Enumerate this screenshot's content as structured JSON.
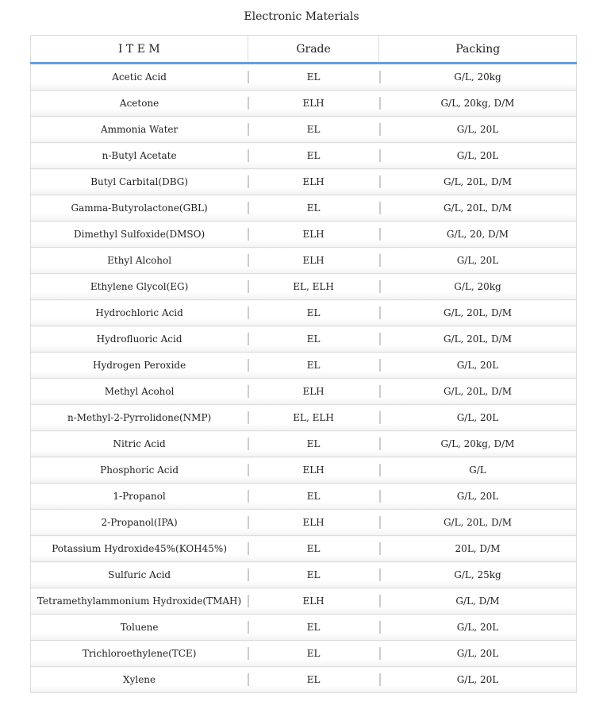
{
  "title": "Electronic Materials",
  "headers": [
    "I T E M",
    "Grade",
    "Packing"
  ],
  "accent_color": "#5fa0ea",
  "rows": [
    [
      "Acetic Acid",
      "EL",
      "G/L, 20kg"
    ],
    [
      "Acetone",
      "ELH",
      "G/L, 20kg, D/M"
    ],
    [
      "Ammonia Water",
      "EL",
      "G/L, 20L"
    ],
    [
      "n-Butyl Acetate",
      "EL",
      "G/L, 20L"
    ],
    [
      "Butyl Carbital(DBG)",
      "ELH",
      "G/L, 20L, D/M"
    ],
    [
      "Gamma-Butyrolactone(GBL)",
      "EL",
      "G/L, 20L, D/M"
    ],
    [
      "Dimethyl Sulfoxide(DMSO)",
      "ELH",
      "G/L, 20, D/M"
    ],
    [
      "Ethyl Alcohol",
      "ELH",
      "G/L, 20L"
    ],
    [
      "Ethylene Glycol(EG)",
      "EL, ELH",
      "G/L, 20kg"
    ],
    [
      "Hydrochloric Acid",
      "EL",
      "G/L, 20L, D/M"
    ],
    [
      "Hydrofluoric Acid",
      "EL",
      "G/L, 20L, D/M"
    ],
    [
      "Hydrogen Peroxide",
      "EL",
      "G/L, 20L"
    ],
    [
      "Methyl Acohol",
      "ELH",
      "G/L, 20L, D/M"
    ],
    [
      "n-Methyl-2-Pyrrolidone(NMP)",
      "EL, ELH",
      "G/L, 20L"
    ],
    [
      "Nitric Acid",
      "EL",
      "G/L, 20kg, D/M"
    ],
    [
      "Phosphoric Acid",
      "ELH",
      "G/L"
    ],
    [
      "1-Propanol",
      "EL",
      "G/L, 20L"
    ],
    [
      "2-Propanol(IPA)",
      "ELH",
      "G/L, 20L, D/M"
    ],
    [
      "Potassium Hydroxide45%(KOH45%)",
      "EL",
      "20L, D/M"
    ],
    [
      "Sulfuric Acid",
      "EL",
      "G/L, 25kg"
    ],
    [
      "Tetramethylammonium Hydroxide(TMAH)",
      "ELH",
      "G/L, D/M"
    ],
    [
      "Toluene",
      "EL",
      "G/L, 20L"
    ],
    [
      "Trichloroethylene(TCE)",
      "EL",
      "G/L, 20L"
    ],
    [
      "Xylene",
      "EL",
      "G/L, 20L"
    ]
  ]
}
